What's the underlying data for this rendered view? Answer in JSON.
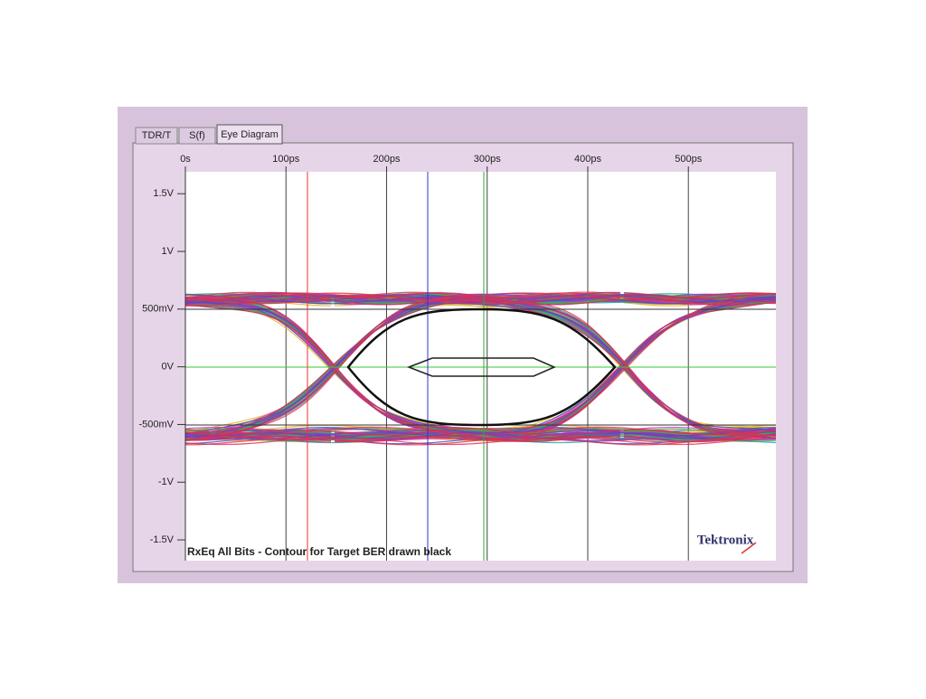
{
  "tabs": [
    "TDR/T",
    "S(f)",
    "Eye Diagram"
  ],
  "chart_data": {
    "type": "eye",
    "caption": "RxEq All Bits - Contour for Target BER drawn black",
    "brand": "Tektronix",
    "xlim": [
      0,
      587
    ],
    "ylim": [
      -1.68,
      1.69
    ],
    "xticks": [
      {
        "value": 0,
        "label": "0s"
      },
      {
        "value": 100,
        "label": "100ps"
      },
      {
        "value": 200,
        "label": "200ps"
      },
      {
        "value": 300,
        "label": "300ps"
      },
      {
        "value": 400,
        "label": "400ps"
      },
      {
        "value": 500,
        "label": "500ps"
      }
    ],
    "yticks": [
      {
        "value": 1.5,
        "label": "1.5V"
      },
      {
        "value": 1,
        "label": "1V"
      },
      {
        "value": 0.5,
        "label": "500mV"
      },
      {
        "value": 0,
        "label": "0V"
      },
      {
        "value": -0.5,
        "label": "-500mV"
      },
      {
        "value": -1,
        "label": "-1V"
      },
      {
        "value": -1.5,
        "label": "-1.5V"
      }
    ],
    "grid": "x"
  }
}
